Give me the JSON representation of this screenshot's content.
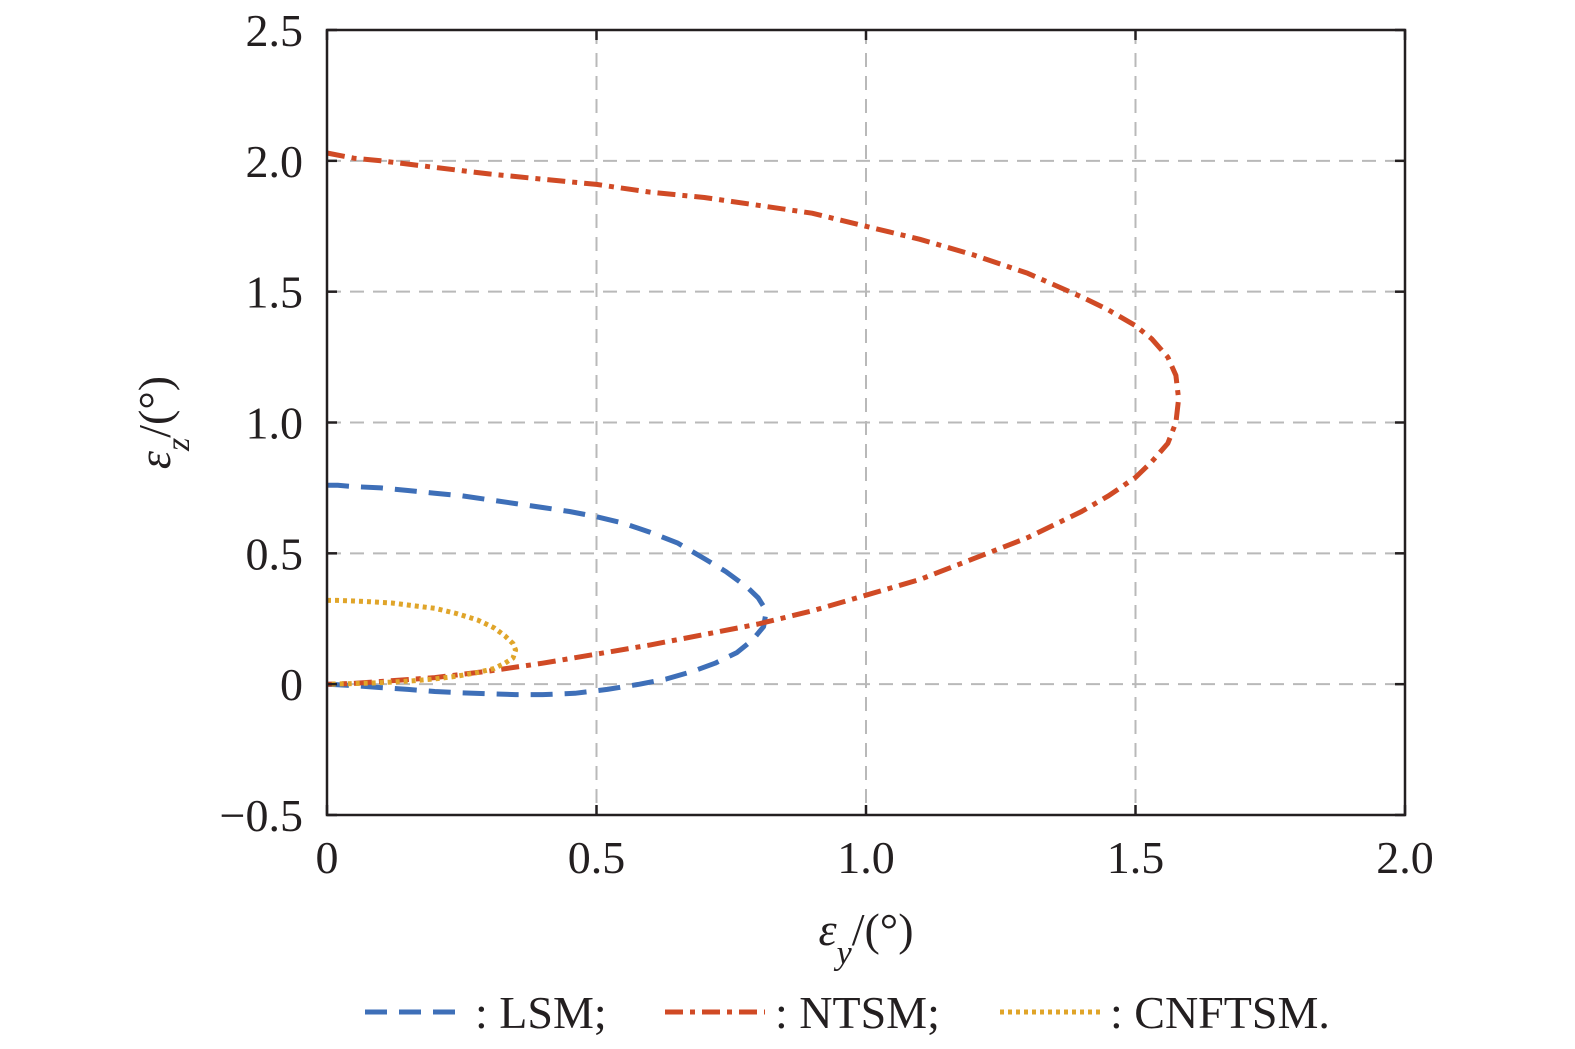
{
  "chart_data": {
    "type": "line",
    "title": "",
    "xlabel": {
      "symbol": "ε",
      "sub": "y",
      "unit": "/(°)"
    },
    "ylabel": {
      "symbol": "ε",
      "sub": "z",
      "unit": "/(°)"
    },
    "xlim": [
      0,
      2.0
    ],
    "ylim": [
      -0.5,
      2.5
    ],
    "x_ticks": [
      0,
      0.5,
      1.0,
      1.5,
      2.0
    ],
    "x_tick_labels": [
      "0",
      "0.5",
      "1.0",
      "1.5",
      "2.0"
    ],
    "y_ticks": [
      -0.5,
      0,
      0.5,
      1.0,
      1.5,
      2.0,
      2.5
    ],
    "y_tick_labels": [
      "−0.5",
      "0",
      "0.5",
      "1.0",
      "1.5",
      "2.0",
      "2.5"
    ],
    "grid": true,
    "legend_position": "bottom",
    "series": [
      {
        "name": ": LSM;",
        "color": "#3e6fb8",
        "dash": "dashed",
        "x": [
          0.0,
          0.02,
          0.05,
          0.1,
          0.15,
          0.2,
          0.25,
          0.3,
          0.35,
          0.4,
          0.45,
          0.5,
          0.55,
          0.6,
          0.65,
          0.7,
          0.74,
          0.78,
          0.8,
          0.815,
          0.81,
          0.79,
          0.76,
          0.72,
          0.68,
          0.63,
          0.58,
          0.52,
          0.46,
          0.4,
          0.35,
          0.3,
          0.25,
          0.2,
          0.15,
          0.1,
          0.05,
          0.02,
          0.0
        ],
        "y": [
          0.76,
          0.76,
          0.755,
          0.75,
          0.74,
          0.73,
          0.72,
          0.705,
          0.69,
          0.675,
          0.66,
          0.64,
          0.615,
          0.58,
          0.54,
          0.48,
          0.43,
          0.37,
          0.33,
          0.28,
          0.22,
          0.17,
          0.12,
          0.08,
          0.05,
          0.02,
          0.0,
          -0.02,
          -0.035,
          -0.04,
          -0.04,
          -0.037,
          -0.033,
          -0.028,
          -0.02,
          -0.013,
          -0.006,
          -0.002,
          0.0
        ]
      },
      {
        "name": ": NTSM;",
        "color": "#d04a25",
        "dash": "dash-dot",
        "x": [
          0.0,
          0.05,
          0.1,
          0.2,
          0.3,
          0.4,
          0.5,
          0.6,
          0.7,
          0.8,
          0.9,
          1.0,
          1.1,
          1.2,
          1.3,
          1.4,
          1.45,
          1.5,
          1.53,
          1.56,
          1.575,
          1.58,
          1.575,
          1.56,
          1.53,
          1.5,
          1.45,
          1.4,
          1.3,
          1.2,
          1.1,
          1.0,
          0.9,
          0.8,
          0.7,
          0.6,
          0.5,
          0.4,
          0.3,
          0.2,
          0.1,
          0.05,
          0.0
        ],
        "y": [
          2.03,
          2.01,
          2.0,
          1.975,
          1.95,
          1.93,
          1.91,
          1.88,
          1.86,
          1.83,
          1.8,
          1.75,
          1.7,
          1.64,
          1.57,
          1.48,
          1.43,
          1.37,
          1.32,
          1.25,
          1.18,
          1.09,
          1.0,
          0.92,
          0.85,
          0.79,
          0.72,
          0.66,
          0.56,
          0.48,
          0.4,
          0.34,
          0.28,
          0.23,
          0.19,
          0.15,
          0.115,
          0.08,
          0.05,
          0.025,
          0.01,
          0.003,
          0.0
        ]
      },
      {
        "name": ": CNFTSM.",
        "color": "#e0a52a",
        "dash": "dotted",
        "x": [
          0.0,
          0.02,
          0.05,
          0.08,
          0.12,
          0.16,
          0.2,
          0.24,
          0.28,
          0.31,
          0.33,
          0.345,
          0.35,
          0.345,
          0.33,
          0.31,
          0.28,
          0.24,
          0.2,
          0.16,
          0.12,
          0.08,
          0.05,
          0.02,
          0.0
        ],
        "y": [
          0.32,
          0.32,
          0.318,
          0.315,
          0.31,
          0.3,
          0.29,
          0.27,
          0.245,
          0.215,
          0.185,
          0.155,
          0.13,
          0.1,
          0.08,
          0.06,
          0.045,
          0.03,
          0.02,
          0.013,
          0.008,
          0.004,
          0.002,
          0.001,
          0.0
        ]
      }
    ]
  }
}
